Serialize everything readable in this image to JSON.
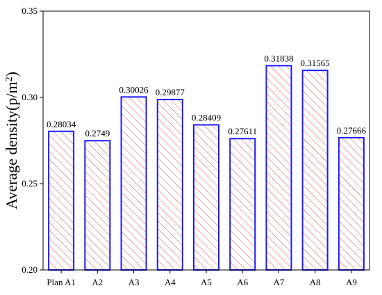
{
  "chart_data": {
    "type": "bar",
    "title": "",
    "xlabel": "",
    "ylabel": "Average density(p/m",
    "ylabel_superscript": "2",
    "ylabel_suffix": ")",
    "categories": [
      "Plan A1",
      "A2",
      "A3",
      "A4",
      "A5",
      "A6",
      "A7",
      "A8",
      "A9"
    ],
    "values": [
      0.28034,
      0.2749,
      0.30026,
      0.29877,
      0.28409,
      0.27611,
      0.31838,
      0.31565,
      0.27666
    ],
    "data_labels": [
      "0.28034",
      "0.2749",
      "0.30026",
      "0.29877",
      "0.28409",
      "0.27611",
      "0.31838",
      "0.31565",
      "0.27666"
    ],
    "ylim": [
      0.2,
      0.35
    ],
    "yticks": [
      0.2,
      0.25,
      0.3,
      0.35
    ],
    "ytick_labels": [
      "0.20",
      "0.25",
      "0.30",
      "0.35"
    ],
    "grid": false,
    "bar_edge_color": "#1a1aff",
    "bar_hatch_color": "#e05555",
    "bar_fill": "hatched"
  }
}
